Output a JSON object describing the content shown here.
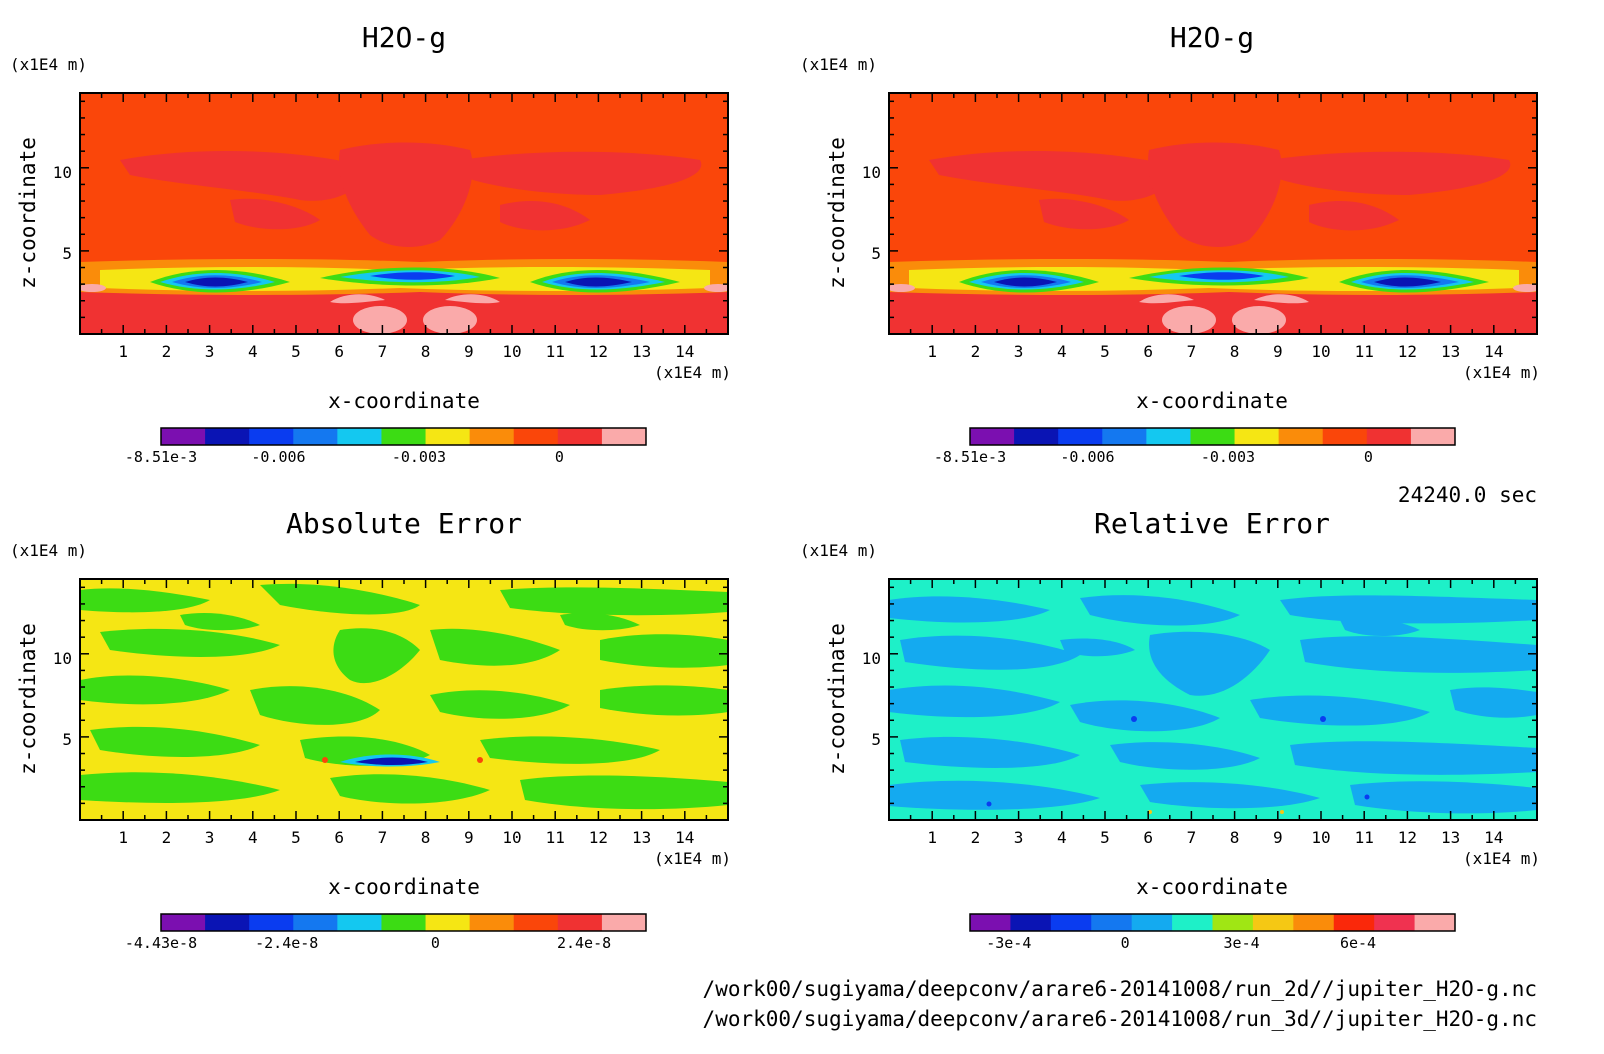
{
  "chart_data": [
    {
      "type": "heatmap",
      "title": "H2O-g",
      "xlabel": "x-coordinate",
      "ylabel": "z-coordinate",
      "x_unit": "(x1E4 m)",
      "y_unit": "(x1E4 m)",
      "xlim": [
        0,
        15
      ],
      "ylim": [
        0,
        14.5
      ],
      "xticks": [
        "1",
        "2",
        "3",
        "4",
        "5",
        "6",
        "7",
        "8",
        "9",
        "10",
        "11",
        "12",
        "13",
        "14"
      ],
      "yticks": [
        "5",
        "10"
      ],
      "colorbar": {
        "colors": [
          "#7b0fb0",
          "#0a14b4",
          "#0a3cf0",
          "#1478f0",
          "#14c8f0",
          "#3cdc14",
          "#f5e614",
          "#fa8c0a",
          "#fa460a",
          "#f03232",
          "#faaaaa"
        ],
        "labels": [
          {
            "text": "-8.51e-3",
            "value": -0.00851
          },
          {
            "text": "-0.006",
            "value": -0.006
          },
          {
            "text": "-0.003",
            "value": -0.003
          },
          {
            "text": "0",
            "value": 0
          }
        ],
        "range": [
          -0.00851,
          0.00185
        ]
      },
      "background_level": "#fa460a"
    },
    {
      "type": "heatmap",
      "title": "H2O-g",
      "xlabel": "x-coordinate",
      "ylabel": "z-coordinate",
      "x_unit": "(x1E4 m)",
      "y_unit": "(x1E4 m)",
      "xlim": [
        0,
        15
      ],
      "ylim": [
        0,
        14.5
      ],
      "xticks": [
        "1",
        "2",
        "3",
        "4",
        "5",
        "6",
        "7",
        "8",
        "9",
        "10",
        "11",
        "12",
        "13",
        "14"
      ],
      "yticks": [
        "5",
        "10"
      ],
      "colorbar": {
        "colors": [
          "#7b0fb0",
          "#0a14b4",
          "#0a3cf0",
          "#1478f0",
          "#14c8f0",
          "#3cdc14",
          "#f5e614",
          "#fa8c0a",
          "#fa460a",
          "#f03232",
          "#faaaaa"
        ],
        "labels": [
          {
            "text": "-8.51e-3",
            "value": -0.00851
          },
          {
            "text": "-0.006",
            "value": -0.006
          },
          {
            "text": "-0.003",
            "value": -0.003
          },
          {
            "text": "0",
            "value": 0
          }
        ],
        "range": [
          -0.00851,
          0.00185
        ]
      },
      "background_level": "#fa460a"
    },
    {
      "type": "heatmap",
      "title": "Absolute Error",
      "xlabel": "x-coordinate",
      "ylabel": "z-coordinate",
      "x_unit": "(x1E4 m)",
      "y_unit": "(x1E4 m)",
      "xlim": [
        0,
        15
      ],
      "ylim": [
        0,
        14.5
      ],
      "xticks": [
        "1",
        "2",
        "3",
        "4",
        "5",
        "6",
        "7",
        "8",
        "9",
        "10",
        "11",
        "12",
        "13",
        "14"
      ],
      "yticks": [
        "5",
        "10"
      ],
      "colorbar": {
        "colors": [
          "#7b0fb0",
          "#0a14b4",
          "#0a3cf0",
          "#1478f0",
          "#14c8f0",
          "#3cdc14",
          "#f5e614",
          "#fa8c0a",
          "#fa460a",
          "#f03232",
          "#faaaaa"
        ],
        "labels": [
          {
            "text": "-4.43e-8",
            "value": -4.43e-08
          },
          {
            "text": "-2.4e-8",
            "value": -2.4e-08
          },
          {
            "text": "0",
            "value": 0
          },
          {
            "text": "2.4e-8",
            "value": 2.4e-08
          }
        ],
        "range": [
          -4.43e-08,
          3.4e-08
        ]
      },
      "background_level": "#f5e614"
    },
    {
      "type": "heatmap",
      "title": "Relative Error",
      "xlabel": "x-coordinate",
      "ylabel": "z-coordinate",
      "x_unit": "(x1E4 m)",
      "y_unit": "(x1E4 m)",
      "xlim": [
        0,
        15
      ],
      "ylim": [
        0,
        14.5
      ],
      "xticks": [
        "1",
        "2",
        "3",
        "4",
        "5",
        "6",
        "7",
        "8",
        "9",
        "10",
        "11",
        "12",
        "13",
        "14"
      ],
      "yticks": [
        "5",
        "10"
      ],
      "colorbar": {
        "colors": [
          "#7b0fb0",
          "#0a14b4",
          "#0a3cf0",
          "#1478f0",
          "#14aaf0",
          "#1ef0c8",
          "#a0e614",
          "#f5c814",
          "#fa8c0a",
          "#fa280a",
          "#f03250",
          "#faaaaa"
        ],
        "labels": [
          {
            "text": "-3e-4",
            "value": -0.0003
          },
          {
            "text": "0",
            "value": 0
          },
          {
            "text": "3e-4",
            "value": 0.0003
          },
          {
            "text": "6e-4",
            "value": 0.0006
          }
        ],
        "range": [
          -0.0004,
          0.00085
        ]
      },
      "background_level": "#1ef0c8"
    }
  ],
  "annotations": {
    "time": "24240.0 sec",
    "file1": "/work00/sugiyama/deepconv/arare6-20141008/run_2d//jupiter_H2O-g.nc",
    "file2": "/work00/sugiyama/deepconv/arare6-20141008/run_3d//jupiter_H2O-g.nc"
  }
}
